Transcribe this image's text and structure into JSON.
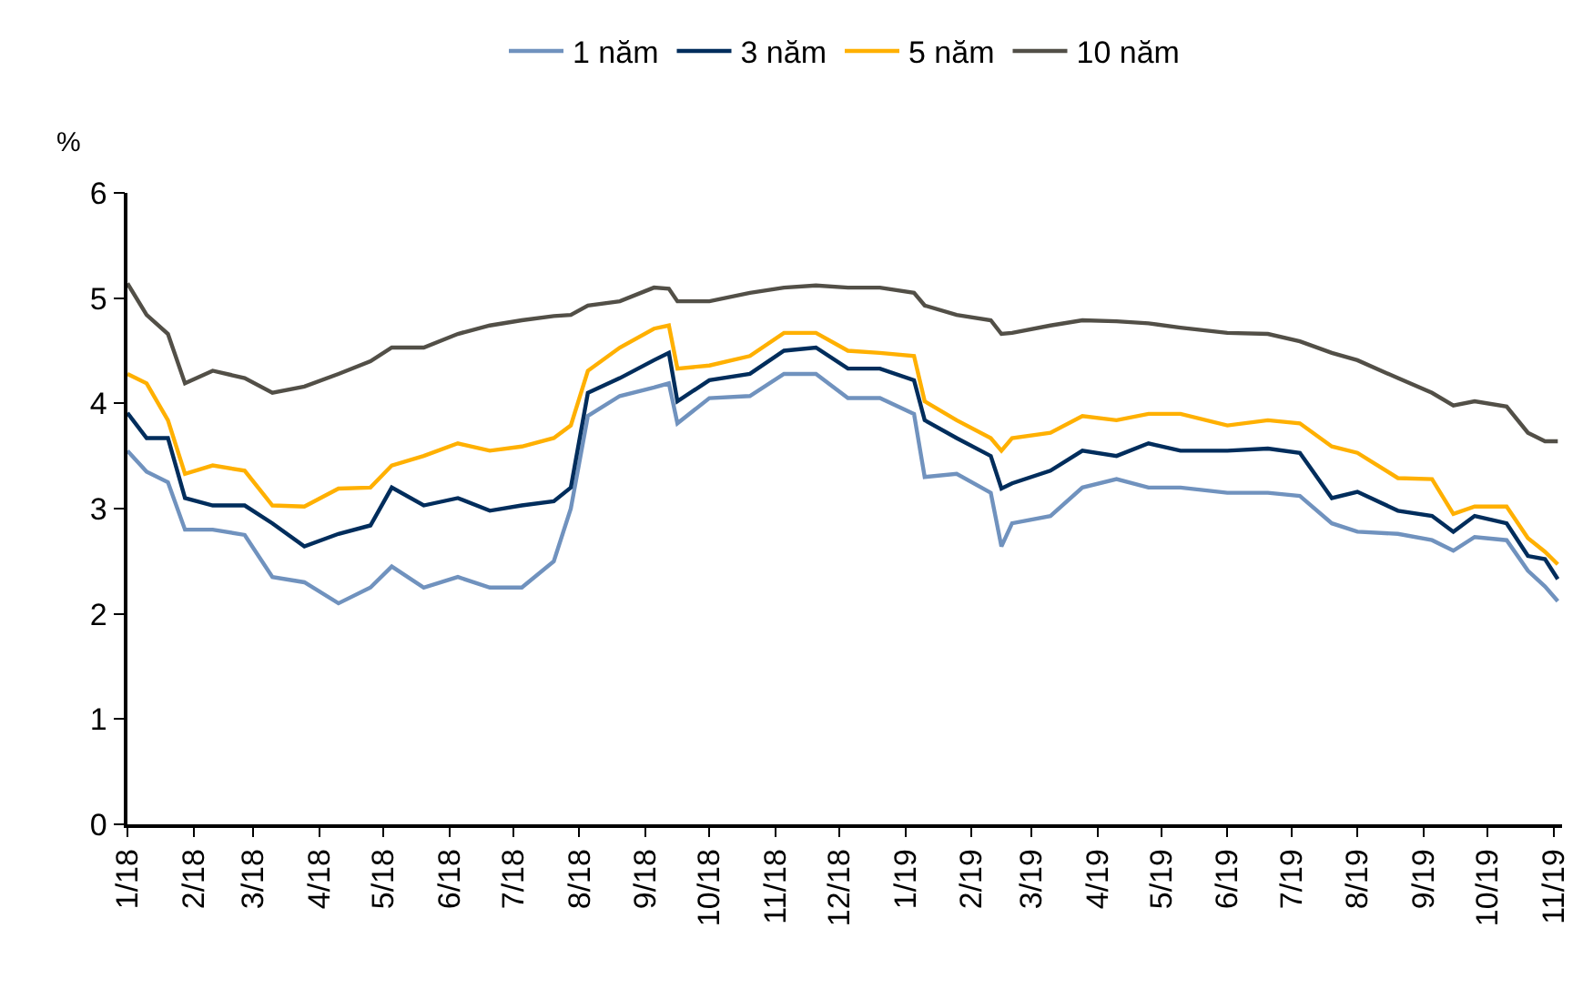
{
  "chart_data": {
    "type": "line",
    "ylabel": "%",
    "legend": "top",
    "marker": "none",
    "line_style": "solid",
    "x": [
      "2018-01-01",
      "2018-01-10",
      "2018-01-20",
      "2018-01-28",
      "2018-02-10",
      "2018-02-25",
      "2018-03-10",
      "2018-03-25",
      "2018-04-10",
      "2018-04-25",
      "2018-05-05",
      "2018-05-20",
      "2018-06-05",
      "2018-06-20",
      "2018-07-05",
      "2018-07-20",
      "2018-07-28",
      "2018-08-05",
      "2018-08-20",
      "2018-09-05",
      "2018-09-12",
      "2018-09-16",
      "2018-10-01",
      "2018-10-20",
      "2018-11-05",
      "2018-11-20",
      "2018-12-05",
      "2018-12-20",
      "2019-01-05",
      "2019-01-10",
      "2019-01-25",
      "2019-02-10",
      "2019-02-15",
      "2019-02-20",
      "2019-03-10",
      "2019-03-25",
      "2019-04-10",
      "2019-04-25",
      "2019-05-10",
      "2019-06-01",
      "2019-06-20",
      "2019-07-05",
      "2019-07-20",
      "2019-08-01",
      "2019-08-20",
      "2019-09-05",
      "2019-09-15",
      "2019-09-25",
      "2019-10-10",
      "2019-10-20",
      "2019-10-28",
      "2019-11-03"
    ],
    "series": [
      {
        "name": "1 năm",
        "color": "#7092be",
        "values": [
          3.55,
          3.35,
          3.25,
          2.8,
          2.8,
          2.75,
          2.35,
          2.3,
          2.1,
          2.25,
          2.45,
          2.25,
          2.35,
          2.25,
          2.25,
          2.5,
          3.0,
          3.88,
          4.07,
          4.15,
          4.19,
          3.81,
          4.05,
          4.07,
          4.28,
          4.28,
          4.05,
          4.05,
          3.9,
          3.3,
          3.33,
          3.15,
          2.64,
          2.86,
          2.93,
          3.2,
          3.28,
          3.2,
          3.2,
          3.15,
          3.15,
          3.12,
          2.86,
          2.78,
          2.76,
          2.7,
          2.6,
          2.73,
          2.7,
          2.41,
          2.26,
          2.12
        ]
      },
      {
        "name": "3 năm",
        "color": "#002d5c",
        "values": [
          3.91,
          3.67,
          3.67,
          3.1,
          3.03,
          3.03,
          2.86,
          2.64,
          2.76,
          2.84,
          3.2,
          3.03,
          3.1,
          2.98,
          3.03,
          3.07,
          3.2,
          4.1,
          4.24,
          4.41,
          4.48,
          4.02,
          4.22,
          4.28,
          4.5,
          4.53,
          4.33,
          4.33,
          4.22,
          3.84,
          3.67,
          3.5,
          3.19,
          3.24,
          3.36,
          3.55,
          3.5,
          3.62,
          3.55,
          3.55,
          3.57,
          3.53,
          3.1,
          3.16,
          2.98,
          2.93,
          2.78,
          2.93,
          2.86,
          2.55,
          2.52,
          2.33
        ]
      },
      {
        "name": "5 năm",
        "color": "#ffb000",
        "values": [
          4.28,
          4.19,
          3.84,
          3.33,
          3.41,
          3.36,
          3.03,
          3.02,
          3.19,
          3.2,
          3.41,
          3.5,
          3.62,
          3.55,
          3.59,
          3.67,
          3.79,
          4.31,
          4.53,
          4.71,
          4.74,
          4.33,
          4.36,
          4.45,
          4.67,
          4.67,
          4.5,
          4.48,
          4.45,
          4.02,
          3.84,
          3.67,
          3.55,
          3.67,
          3.72,
          3.88,
          3.84,
          3.9,
          3.9,
          3.79,
          3.84,
          3.81,
          3.59,
          3.53,
          3.29,
          3.28,
          2.95,
          3.02,
          3.02,
          2.72,
          2.59,
          2.47
        ]
      },
      {
        "name": "10 năm",
        "color": "#524f47",
        "values": [
          5.14,
          4.84,
          4.66,
          4.19,
          4.31,
          4.24,
          4.1,
          4.16,
          4.28,
          4.4,
          4.53,
          4.53,
          4.66,
          4.74,
          4.79,
          4.83,
          4.84,
          4.93,
          4.97,
          5.1,
          5.09,
          4.97,
          4.97,
          5.05,
          5.1,
          5.12,
          5.1,
          5.1,
          5.05,
          4.93,
          4.84,
          4.79,
          4.66,
          4.67,
          4.74,
          4.79,
          4.78,
          4.76,
          4.72,
          4.67,
          4.66,
          4.59,
          4.48,
          4.41,
          4.24,
          4.1,
          3.98,
          4.02,
          3.97,
          3.72,
          3.64,
          3.64
        ]
      }
    ],
    "ylim": [
      0,
      6
    ],
    "yticks": [
      0,
      1,
      2,
      3,
      4,
      5,
      6
    ],
    "xlim": [
      "2018-01-01",
      "2019-11-05"
    ],
    "xticks": [
      {
        "value": "2018-01-01",
        "label": "1/18"
      },
      {
        "value": "2018-02-01",
        "label": "2/18"
      },
      {
        "value": "2018-03-01",
        "label": "3/18"
      },
      {
        "value": "2018-04-01",
        "label": "4/18"
      },
      {
        "value": "2018-05-01",
        "label": "5/18"
      },
      {
        "value": "2018-06-01",
        "label": "6/18"
      },
      {
        "value": "2018-07-01",
        "label": "7/18"
      },
      {
        "value": "2018-08-01",
        "label": "8/18"
      },
      {
        "value": "2018-09-01",
        "label": "9/18"
      },
      {
        "value": "2018-10-01",
        "label": "10/18"
      },
      {
        "value": "2018-11-01",
        "label": "11/18"
      },
      {
        "value": "2018-12-01",
        "label": "12/18"
      },
      {
        "value": "2019-01-01",
        "label": "1/19"
      },
      {
        "value": "2019-02-01",
        "label": "2/19"
      },
      {
        "value": "2019-03-01",
        "label": "3/19"
      },
      {
        "value": "2019-04-01",
        "label": "4/19"
      },
      {
        "value": "2019-05-01",
        "label": "5/19"
      },
      {
        "value": "2019-06-01",
        "label": "6/19"
      },
      {
        "value": "2019-07-01",
        "label": "7/19"
      },
      {
        "value": "2019-08-01",
        "label": "8/19"
      },
      {
        "value": "2019-09-01",
        "label": "9/19"
      },
      {
        "value": "2019-10-01",
        "label": "10/19"
      },
      {
        "value": "2019-11-01",
        "label": "11/19"
      }
    ]
  }
}
